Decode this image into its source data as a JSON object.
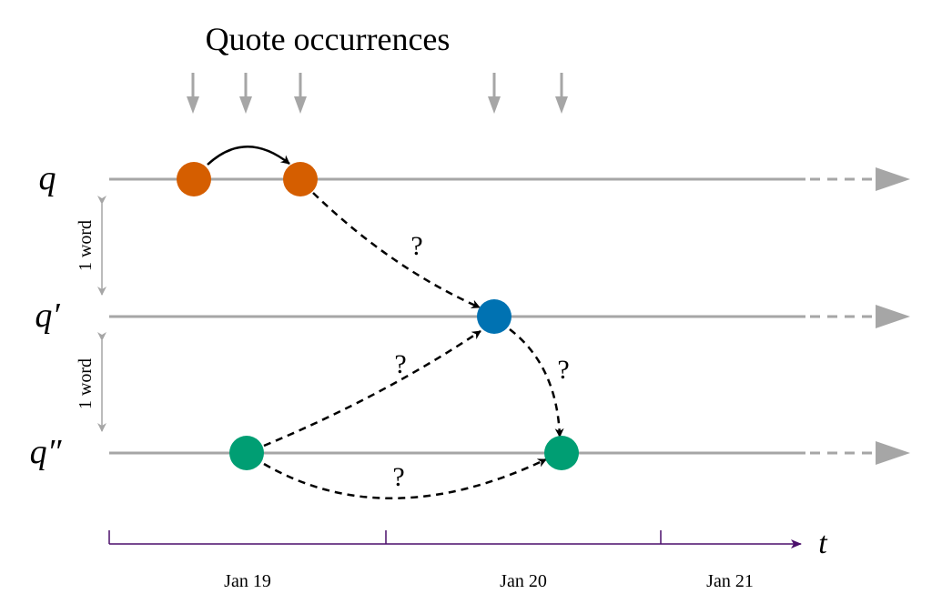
{
  "title": "Quote occurrences",
  "lanes": [
    {
      "id": "q",
      "label": "q"
    },
    {
      "id": "q1",
      "label": "q′"
    },
    {
      "id": "q2",
      "label": "q″"
    }
  ],
  "gap_labels": [
    "1 word",
    "1 word"
  ],
  "axis": {
    "variable": "t",
    "days": [
      "Jan 19",
      "Jan 20",
      "Jan 21"
    ]
  },
  "edge_label": "?",
  "colors": {
    "lane": "#a6a6a6",
    "arrow_gray": "#a6a6a6",
    "axis": "#4b0f6b",
    "edge": "#000000",
    "node_q": "#d55e00",
    "node_q1": "#0072b2",
    "node_q2": "#009e73"
  }
}
